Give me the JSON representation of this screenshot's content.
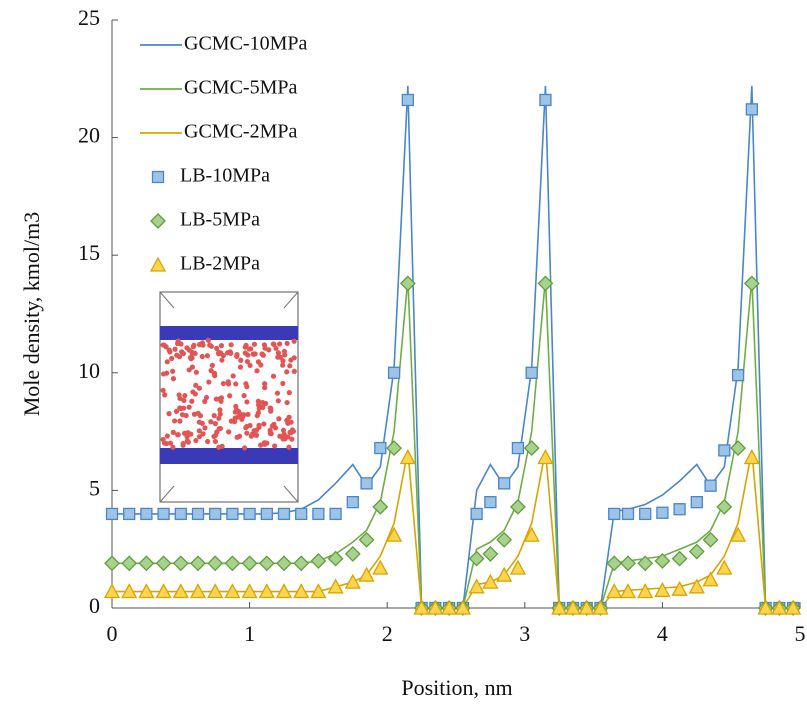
{
  "chart_data": {
    "type": "line",
    "x_label": "Position, nm",
    "y_label": "Mole density, kmol/m3",
    "xlim": [
      0,
      5
    ],
    "ylim": [
      0,
      25
    ],
    "xticks": [
      0,
      1,
      2,
      3,
      4,
      5
    ],
    "yticks": [
      0,
      5,
      10,
      15,
      20,
      25
    ],
    "grid": false,
    "legend": "upper left",
    "x": [
      0,
      0.125,
      0.25,
      0.375,
      0.5,
      0.625,
      0.75,
      0.875,
      1,
      1.125,
      1.25,
      1.375,
      1.5,
      1.625,
      1.75,
      1.85,
      1.95,
      2.05,
      2.15,
      2.25,
      2.35,
      2.45,
      2.55,
      2.65,
      2.75,
      2.85,
      2.95,
      3.05,
      3.15,
      3.25,
      3.35,
      3.45,
      3.55,
      3.65,
      3.75,
      3.875,
      4,
      4.125,
      4.25,
      4.35,
      4.45,
      4.55,
      4.65,
      4.75,
      4.85,
      4.95
    ],
    "series": [
      {
        "name": "GCMC-10MPa",
        "style": "line",
        "color": "#4a86c8",
        "values": [
          4,
          4,
          4,
          4,
          4,
          4,
          4,
          4,
          4,
          4,
          4.05,
          4.2,
          4.6,
          5.3,
          6.1,
          5.2,
          6.0,
          10.2,
          22.2,
          0,
          0,
          0,
          0,
          5.0,
          6.1,
          5.2,
          6.0,
          10.2,
          22.2,
          0,
          0,
          0,
          0,
          4.1,
          4.2,
          4.4,
          4.8,
          5.4,
          6.1,
          5.2,
          6.0,
          10.2,
          22.2,
          0,
          0,
          0
        ]
      },
      {
        "name": "GCMC-5MPa",
        "style": "line",
        "color": "#70ad47",
        "values": [
          1.9,
          1.9,
          1.9,
          1.9,
          1.9,
          1.9,
          1.9,
          1.9,
          1.9,
          1.9,
          1.9,
          1.9,
          2.0,
          2.3,
          2.8,
          3.3,
          4.5,
          7.5,
          14.0,
          0,
          0,
          0,
          0,
          2.5,
          2.8,
          3.3,
          4.5,
          7.5,
          14.0,
          0,
          0,
          0,
          0,
          1.9,
          2.0,
          2.1,
          2.2,
          2.5,
          2.8,
          3.3,
          4.5,
          7.5,
          14.0,
          0,
          0,
          0
        ]
      },
      {
        "name": "GCMC-2MPa",
        "style": "line",
        "color": "#d9a400",
        "values": [
          0.7,
          0.7,
          0.7,
          0.7,
          0.7,
          0.7,
          0.7,
          0.7,
          0.7,
          0.7,
          0.7,
          0.7,
          0.7,
          0.9,
          1.1,
          1.4,
          2.2,
          3.6,
          6.7,
          0,
          0,
          0,
          0,
          1.0,
          1.1,
          1.4,
          2.2,
          3.6,
          6.7,
          0,
          0,
          0,
          0,
          0.7,
          0.75,
          0.8,
          0.85,
          0.9,
          1.1,
          1.4,
          2.2,
          3.6,
          6.7,
          0,
          0,
          0
        ]
      },
      {
        "name": "LB-10MPa",
        "style": "marker",
        "marker": "square",
        "color": "#9dc3e6",
        "values": [
          4,
          4,
          4,
          4,
          4,
          4,
          4,
          4,
          4,
          4,
          4,
          4,
          4,
          4,
          4.5,
          5.3,
          6.8,
          10,
          21.6,
          0,
          0,
          0,
          0,
          4,
          4.5,
          5.3,
          6.8,
          10,
          21.6,
          0,
          0,
          0,
          0,
          4,
          4,
          4,
          4.05,
          4.2,
          4.5,
          5.2,
          6.7,
          9.9,
          21.2,
          0,
          0,
          0
        ]
      },
      {
        "name": "LB-5MPa",
        "style": "marker",
        "marker": "diamond",
        "color": "#a9d18e",
        "values": [
          1.9,
          1.9,
          1.9,
          1.9,
          1.9,
          1.9,
          1.9,
          1.9,
          1.9,
          1.9,
          1.9,
          1.9,
          2.0,
          2.1,
          2.3,
          2.9,
          4.3,
          6.8,
          13.8,
          0,
          0,
          0,
          0,
          2.1,
          2.3,
          2.9,
          4.3,
          6.8,
          13.8,
          0,
          0,
          0,
          0,
          1.9,
          1.9,
          1.9,
          2.0,
          2.1,
          2.4,
          2.9,
          4.3,
          6.8,
          13.8,
          0,
          0,
          0
        ]
      },
      {
        "name": "LB-2MPa",
        "style": "marker",
        "marker": "triangle",
        "color": "#ffd54f",
        "values": [
          0.7,
          0.7,
          0.7,
          0.7,
          0.7,
          0.7,
          0.7,
          0.7,
          0.7,
          0.7,
          0.7,
          0.7,
          0.7,
          0.9,
          1.1,
          1.4,
          1.7,
          3.1,
          6.4,
          0,
          0,
          0,
          0,
          0.9,
          1.1,
          1.4,
          1.7,
          3.1,
          6.4,
          0,
          0,
          0,
          0,
          0.7,
          0.7,
          0.7,
          0.75,
          0.8,
          0.9,
          1.2,
          1.7,
          3.1,
          6.4,
          0,
          0,
          0
        ]
      }
    ]
  }
}
